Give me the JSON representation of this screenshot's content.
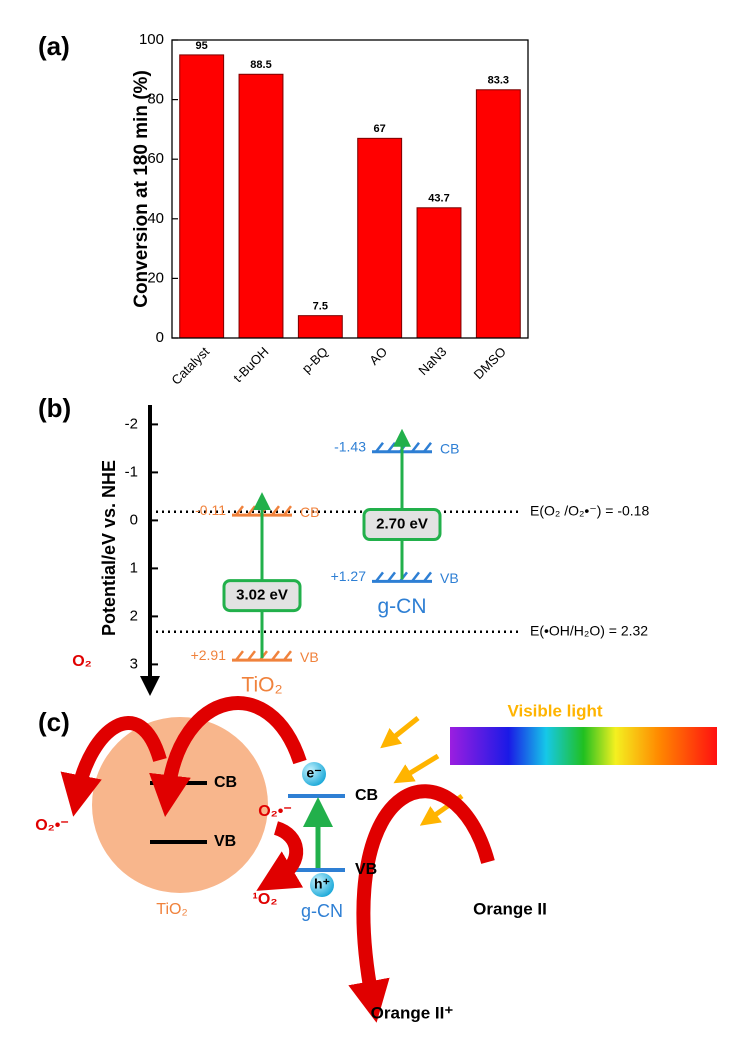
{
  "panel_labels": [
    "(a)",
    "(b)",
    "(c)"
  ],
  "chart_data": {
    "type": "bar",
    "ylabel": "Conversion at 180 min (%)",
    "categories": [
      "Catalyst",
      "t-BuOH",
      "p-BQ",
      "AO",
      "NaN3",
      "DMSO"
    ],
    "values": [
      95,
      88.5,
      7.5,
      67,
      43.7,
      83.3
    ],
    "color": "#ff0000",
    "ylim": [
      0,
      100
    ],
    "yticks": [
      0,
      20,
      40,
      60,
      80,
      100
    ]
  },
  "band_diagram": {
    "ylabel": "Potential/eV vs. NHE",
    "ylim": [
      -2.3,
      3.45
    ],
    "yticks": [
      -2,
      -1,
      0,
      1,
      2,
      3
    ],
    "materials": [
      {
        "name": "TiO₂",
        "color": "#f0823c",
        "cb": -0.11,
        "vb": {
          "value": 2.91,
          "label": "+2.91"
        },
        "cb_text": "CB",
        "vb_text": "VB",
        "band_gap": "3.02 eV"
      },
      {
        "name": "g-CN",
        "color": "#2e7fd4",
        "cb": -1.43,
        "vb": {
          "value": 1.27,
          "label": "+1.27"
        },
        "cb_text": "CB",
        "vb_text": "VB",
        "band_gap": "2.70 eV"
      }
    ],
    "reference_lines": [
      {
        "value": -0.18,
        "label": "E(O₂ /O₂•⁻) = -0.18"
      },
      {
        "value": 2.32,
        "label": "E(•OH/H₂O) = 2.32"
      }
    ]
  },
  "schematic": {
    "light": "Visible light",
    "o2": "O₂",
    "o2_radical_left": "O₂•⁻",
    "tio2_cb": "CB",
    "tio2_vb": "VB",
    "tio2": "TiO₂",
    "electron": "e⁻",
    "hole": "h⁺",
    "o2_radical_right": "O₂•⁻",
    "singlet_o2": "¹O₂",
    "gcn_cb": "CB",
    "gcn_vb": "VB",
    "gcn": "g-CN",
    "dye": "Orange II",
    "dye_oxidized": "Orange II⁺"
  }
}
